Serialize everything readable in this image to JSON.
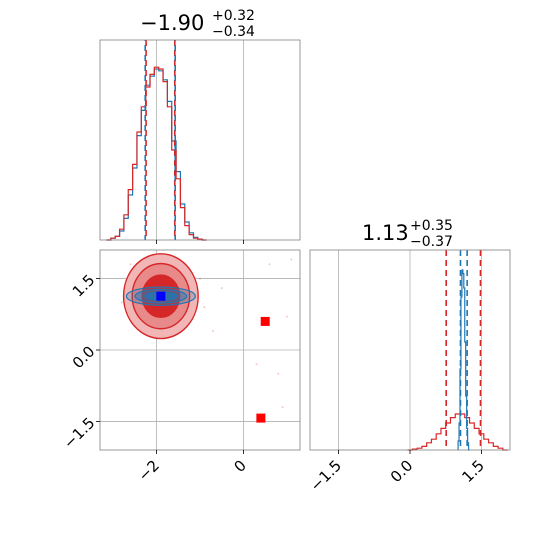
{
  "chart_data": [
    {
      "panel": "x marginal histogram",
      "type": "histogram",
      "title": {
        "value": "−1.90",
        "upper": "+0.32",
        "lower": "−0.34"
      },
      "xlim": [
        -3.3,
        1.3
      ],
      "grid": true,
      "quantile_lines": {
        "red": [
          -2.24,
          -1.58
        ],
        "blue": [
          -2.26,
          -1.57
        ]
      },
      "series": [
        {
          "color": "#1f77b4",
          "bins": [
            -3.1,
            -3.0,
            -2.9,
            -2.8,
            -2.7,
            -2.6,
            -2.5,
            -2.4,
            -2.3,
            -2.2,
            -2.1,
            -2.0,
            -1.9,
            -1.8,
            -1.7,
            -1.6,
            -1.5,
            -1.4,
            -1.3,
            -1.2,
            -1.1,
            -1.0,
            -0.9
          ],
          "heights": [
            0,
            0.01,
            0.02,
            0.05,
            0.12,
            0.25,
            0.4,
            0.58,
            0.72,
            0.86,
            0.91,
            0.95,
            0.94,
            0.89,
            0.77,
            0.55,
            0.38,
            0.2,
            0.1,
            0.04,
            0.015,
            0.005,
            0
          ]
        },
        {
          "color": "#d62728",
          "bins": [
            -3.1,
            -3.0,
            -2.9,
            -2.8,
            -2.7,
            -2.6,
            -2.5,
            -2.4,
            -2.3,
            -2.2,
            -2.1,
            -2.0,
            -1.9,
            -1.8,
            -1.7,
            -1.6,
            -1.5,
            -1.4,
            -1.3,
            -1.2,
            -1.1,
            -1.0,
            -0.9
          ],
          "heights": [
            0,
            0.01,
            0.02,
            0.06,
            0.14,
            0.28,
            0.42,
            0.6,
            0.74,
            0.85,
            0.92,
            0.96,
            0.95,
            0.88,
            0.74,
            0.5,
            0.34,
            0.18,
            0.08,
            0.03,
            0.01,
            0.005,
            0
          ]
        }
      ]
    },
    {
      "panel": "joint 2D",
      "type": "scatter",
      "xlim": [
        -3.3,
        1.3
      ],
      "ylim": [
        -2.1,
        2.1
      ],
      "x_ticks": [
        "−2",
        "0"
      ],
      "x_tick_values": [
        -2,
        0
      ],
      "y_ticks": [
        "1.5",
        "0.0",
        "−1.5"
      ],
      "y_tick_values": [
        1.5,
        0.0,
        -1.5
      ],
      "grid": true,
      "red_contour_center": [
        -1.9,
        1.13
      ],
      "red_contour_sigma": [
        0.33,
        0.36
      ],
      "blue_contour_center": [
        -1.9,
        1.13
      ],
      "blue_contour_sigma": [
        0.33,
        0.04
      ],
      "markers": [
        {
          "color": "#0000ff",
          "x": -1.9,
          "y": 1.13
        },
        {
          "color": "#ff0000",
          "x": 0.5,
          "y": 0.6
        },
        {
          "color": "#ff0000",
          "x": 0.4,
          "y": -1.43
        }
      ]
    },
    {
      "panel": "y marginal histogram",
      "type": "histogram",
      "title": {
        "value": "1.13",
        "upper": "+0.35",
        "lower": "−0.37"
      },
      "xlim": [
        -2.1,
        2.1
      ],
      "x_ticks": [
        "−1.5",
        "0.0",
        "1.5"
      ],
      "x_tick_values": [
        -1.5,
        0.0,
        1.5
      ],
      "grid": true,
      "quantile_lines": {
        "red": [
          0.76,
          1.48
        ],
        "blue": [
          1.06,
          1.2
        ]
      },
      "series": [
        {
          "color": "#d62728",
          "bins": [
            0.0,
            0.1,
            0.2,
            0.3,
            0.4,
            0.5,
            0.6,
            0.7,
            0.8,
            0.9,
            1.0,
            1.1,
            1.2,
            1.3,
            1.4,
            1.5,
            1.6,
            1.7,
            1.8,
            1.9,
            2.0
          ],
          "heights": [
            0,
            0.005,
            0.01,
            0.02,
            0.04,
            0.06,
            0.09,
            0.12,
            0.15,
            0.18,
            0.2,
            0.2,
            0.18,
            0.15,
            0.12,
            0.09,
            0.06,
            0.04,
            0.02,
            0.01,
            0
          ]
        },
        {
          "color": "#1f77b4",
          "bins": [
            1.02,
            1.04,
            1.06,
            1.08,
            1.1,
            1.12,
            1.14,
            1.16,
            1.18,
            1.2,
            1.22,
            1.24
          ],
          "heights": [
            0.05,
            0.15,
            0.45,
            0.85,
            1.0,
            0.98,
            0.9,
            0.6,
            0.3,
            0.12,
            0.04,
            0
          ]
        }
      ]
    }
  ]
}
